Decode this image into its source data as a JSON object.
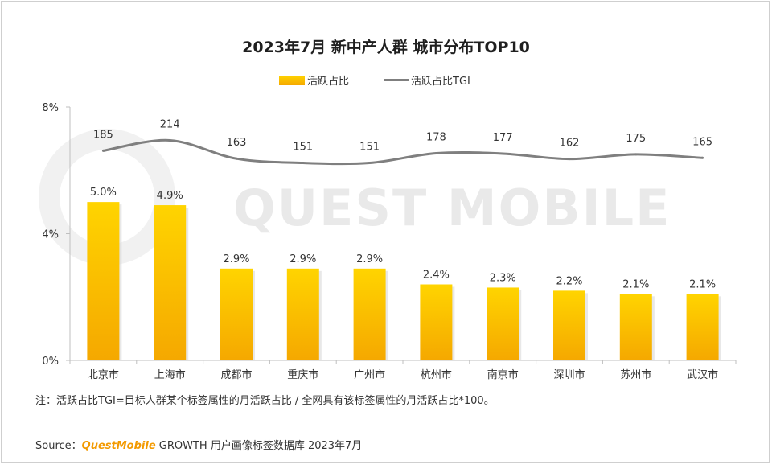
{
  "title": "2023年7月 新中产人群 城市分布TOP10",
  "legend": {
    "bar": "活跃占比",
    "line": "活跃占比TGI"
  },
  "watermark": "QUEST MOBILE",
  "note": "注：活跃占比TGI=目标人群某个标签属性的月活跃占比 / 全网具有该标签属性的月活跃占比*100。",
  "source": {
    "prefix": "Source：",
    "brand": "QuestMobile",
    "rest": " GROWTH 用户画像标签数据库 2023年7月"
  },
  "colors": {
    "bar_top": "#ffd400",
    "bar_bottom": "#f5a800",
    "line": "#7f7f7f",
    "axis": "#bfbfbf"
  },
  "chart_data": {
    "type": "bar",
    "categories": [
      "北京市",
      "上海市",
      "成都市",
      "重庆市",
      "广州市",
      "杭州市",
      "南京市",
      "深圳市",
      "苏州市",
      "武汉市"
    ],
    "ylim": [
      0,
      8
    ],
    "yticks": [
      "0%",
      "4%",
      "8%"
    ],
    "series": [
      {
        "name": "活跃占比",
        "type": "bar",
        "values": [
          5.0,
          4.9,
          2.9,
          2.9,
          2.9,
          2.4,
          2.3,
          2.2,
          2.1,
          2.1
        ],
        "labels": [
          "5.0%",
          "4.9%",
          "2.9%",
          "2.9%",
          "2.9%",
          "2.4%",
          "2.3%",
          "2.2%",
          "2.1%",
          "2.1%"
        ]
      },
      {
        "name": "活跃占比TGI",
        "type": "line",
        "values": [
          185,
          214,
          163,
          151,
          151,
          178,
          177,
          162,
          175,
          165
        ],
        "labels": [
          "185",
          "214",
          "163",
          "151",
          "151",
          "178",
          "177",
          "162",
          "175",
          "165"
        ]
      }
    ],
    "grid": false,
    "legend_position": "top-center"
  }
}
